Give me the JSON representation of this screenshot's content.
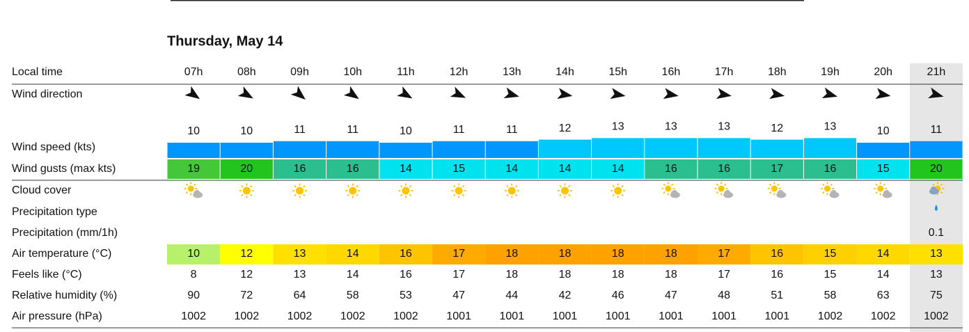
{
  "header": {
    "title": "Thursday, May 14"
  },
  "table": {
    "row_labels": [
      "Local time",
      "Wind direction",
      "Wind speed (kts)",
      "Wind gusts (max kts)",
      "Cloud cover",
      "Precipitation type",
      "Precipitation (mm/1h)",
      "Air temperature (°C)",
      "Feels like (°C)",
      "Relative humidity (%)",
      "Air pressure (hPa)"
    ],
    "hours": [
      "07h",
      "08h",
      "09h",
      "10h",
      "11h",
      "12h",
      "13h",
      "14h",
      "15h",
      "16h",
      "17h",
      "18h",
      "19h",
      "20h",
      "21h"
    ],
    "wind_speed": [
      10,
      10,
      11,
      11,
      10,
      11,
      11,
      12,
      13,
      13,
      13,
      12,
      13,
      10,
      11
    ],
    "wind_speed_colors": [
      "#0096ff",
      "#0096ff",
      "#0096ff",
      "#0096ff",
      "#0096ff",
      "#0096ff",
      "#0096ff",
      "#00c8ff",
      "#00c8ff",
      "#00c8ff",
      "#00c8ff",
      "#00c8ff",
      "#00c8ff",
      "#0096ff",
      "#0096ff"
    ],
    "wind_gusts": [
      19,
      20,
      16,
      16,
      14,
      15,
      14,
      14,
      14,
      16,
      16,
      17,
      16,
      15,
      20
    ],
    "gust_colors": [
      "#44c83a",
      "#22c41e",
      "#2bbf8f",
      "#2bbf8f",
      "#00e2ee",
      "#00e2ee",
      "#00e2ee",
      "#00e2ee",
      "#00e2ee",
      "#2bbf8f",
      "#2bbf8f",
      "#2bbf8f",
      "#2bbf8f",
      "#00e2ee",
      "#22c41e"
    ],
    "precipitation": [
      null,
      null,
      null,
      null,
      null,
      null,
      null,
      null,
      null,
      null,
      null,
      null,
      null,
      null,
      0.1
    ],
    "air_temperature": [
      10,
      12,
      13,
      14,
      16,
      17,
      18,
      18,
      18,
      18,
      17,
      16,
      15,
      14,
      13
    ],
    "temperature_colors": [
      "#b7f06a",
      "#ffff00",
      "#ffe000",
      "#ffd800",
      "#ffc400",
      "#ffaa00",
      "#ffa200",
      "#ffa200",
      "#ffa200",
      "#ffa200",
      "#ffaa00",
      "#ffc400",
      "#ffd000",
      "#ffd800",
      "#ffe000"
    ],
    "feels_like": [
      8,
      12,
      13,
      14,
      16,
      17,
      18,
      18,
      18,
      18,
      17,
      16,
      15,
      14,
      13
    ],
    "humidity": [
      90,
      72,
      64,
      58,
      53,
      47,
      44,
      42,
      46,
      47,
      48,
      51,
      58,
      63,
      75
    ],
    "pressure": [
      1002,
      1002,
      1002,
      1002,
      1002,
      1001,
      1001,
      1001,
      1001,
      1001,
      1001,
      1001,
      1002,
      1002,
      1002
    ]
  }
}
